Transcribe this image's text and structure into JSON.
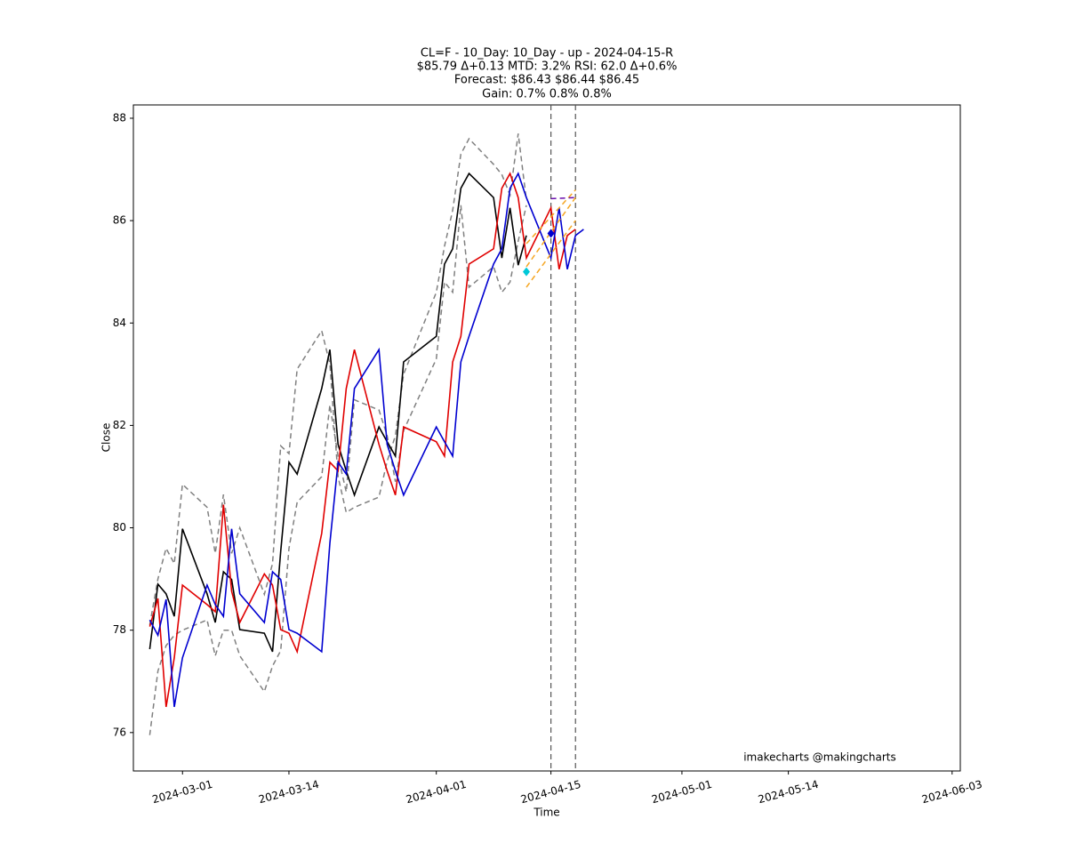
{
  "chart_data": {
    "type": "line",
    "title": [
      "CL=F  - 10_Day: 10_Day - up - 2024-04-15-R",
      "$85.79 Δ+0.13 MTD: 3.2% RSI: 62.0 Δ+0.6%",
      "Forecast: $86.43  $86.44  $86.45",
      "Gain:   0.7%    0.8%    0.8%"
    ],
    "xlabel": "Time",
    "ylabel": "Close",
    "annotation": "imakecharts @makingcharts",
    "xlim": [
      "2024-02-24",
      "2024-06-04"
    ],
    "xticks": [
      "2024-03-01",
      "2024-03-14",
      "2024-04-01",
      "2024-04-15",
      "2024-05-01",
      "2024-05-14",
      "2024-06-03"
    ],
    "ylim": [
      75.25,
      88.26
    ],
    "yticks": [
      76,
      78,
      80,
      82,
      84,
      86,
      88
    ],
    "vlines": [
      "2024-04-15",
      "2024-04-18"
    ],
    "series": [
      {
        "color": "#808080",
        "style": "dashed",
        "x": [
          "2024-02-26",
          "2024-02-27",
          "2024-02-28",
          "2024-02-29",
          "2024-03-01",
          "2024-03-04",
          "2024-03-05",
          "2024-03-06",
          "2024-03-07",
          "2024-03-08",
          "2024-03-11",
          "2024-03-12",
          "2024-03-13",
          "2024-03-14",
          "2024-03-15",
          "2024-03-18",
          "2024-03-19",
          "2024-03-20",
          "2024-03-21",
          "2024-03-22",
          "2024-03-25",
          "2024-03-26",
          "2024-03-27",
          "2024-03-28",
          "2024-04-01",
          "2024-04-02",
          "2024-04-03",
          "2024-04-04",
          "2024-04-05",
          "2024-04-08",
          "2024-04-09",
          "2024-04-10",
          "2024-04-11",
          "2024-04-12"
        ],
        "values": [
          78.1,
          79.0,
          79.6,
          79.3,
          80.85,
          80.4,
          79.5,
          80.65,
          79.5,
          80.0,
          78.7,
          79.3,
          81.6,
          81.45,
          83.1,
          83.85,
          83.2,
          81.0,
          80.3,
          80.4,
          80.6,
          81.3,
          81.8,
          83.0,
          84.6,
          85.5,
          86.2,
          87.3,
          87.6,
          87.1,
          86.9,
          86.5,
          87.7,
          86.4
        ]
      },
      {
        "color": "#808080",
        "style": "dashed",
        "x": [
          "2024-02-26",
          "2024-02-27",
          "2024-02-28",
          "2024-02-29",
          "2024-03-01",
          "2024-03-04",
          "2024-03-05",
          "2024-03-06",
          "2024-03-07",
          "2024-03-08",
          "2024-03-11",
          "2024-03-12",
          "2024-03-13",
          "2024-03-14",
          "2024-03-15",
          "2024-03-18",
          "2024-03-19",
          "2024-03-20",
          "2024-03-21",
          "2024-03-22",
          "2024-03-25",
          "2024-03-26",
          "2024-03-27",
          "2024-03-28",
          "2024-04-01",
          "2024-04-02",
          "2024-04-03",
          "2024-04-04",
          "2024-04-05",
          "2024-04-08",
          "2024-04-09",
          "2024-04-10",
          "2024-04-11",
          "2024-04-12"
        ],
        "values": [
          75.95,
          77.2,
          77.7,
          77.9,
          78.0,
          78.2,
          77.5,
          78.0,
          78.0,
          77.5,
          76.8,
          77.3,
          77.6,
          79.6,
          80.5,
          81.0,
          82.4,
          81.4,
          80.7,
          82.5,
          82.3,
          81.8,
          80.9,
          81.9,
          83.3,
          84.8,
          84.6,
          86.3,
          84.7,
          85.1,
          84.6,
          84.8,
          85.6,
          86.3
        ]
      },
      {
        "color": "#000000",
        "style": "solid",
        "x": [
          "2024-02-26",
          "2024-02-27",
          "2024-02-28",
          "2024-02-29",
          "2024-03-01",
          "2024-03-04",
          "2024-03-05",
          "2024-03-06",
          "2024-03-07",
          "2024-03-08",
          "2024-03-11",
          "2024-03-12",
          "2024-03-13",
          "2024-03-14",
          "2024-03-15",
          "2024-03-18",
          "2024-03-19",
          "2024-03-20",
          "2024-03-21",
          "2024-03-22",
          "2024-03-25",
          "2024-03-26",
          "2024-03-27",
          "2024-03-28",
          "2024-04-01",
          "2024-04-02",
          "2024-04-03",
          "2024-04-04",
          "2024-04-05",
          "2024-04-08",
          "2024-04-09",
          "2024-04-10",
          "2024-04-11",
          "2024-04-12"
        ],
        "values": [
          77.63,
          78.9,
          78.71,
          78.27,
          79.98,
          78.71,
          78.15,
          79.14,
          78.99,
          78.01,
          77.94,
          77.58,
          79.54,
          81.28,
          81.05,
          82.72,
          83.48,
          81.63,
          81.11,
          80.64,
          81.97,
          81.68,
          81.4,
          83.24,
          83.74,
          85.15,
          85.45,
          86.63,
          86.92,
          86.45,
          85.27,
          86.25,
          85.13,
          85.71
        ]
      },
      {
        "color": "#e00000",
        "style": "solid",
        "x": [
          "2024-02-26",
          "2024-02-27",
          "2024-02-28",
          "2024-02-29",
          "2024-03-01",
          "2024-03-04",
          "2024-03-05",
          "2024-03-06",
          "2024-03-07",
          "2024-03-08",
          "2024-03-11",
          "2024-03-12",
          "2024-03-13",
          "2024-03-14",
          "2024-03-15",
          "2024-03-18",
          "2024-03-19",
          "2024-03-20",
          "2024-03-21",
          "2024-03-22",
          "2024-03-25",
          "2024-03-26",
          "2024-03-27",
          "2024-03-28",
          "2024-04-01",
          "2024-04-02",
          "2024-04-03",
          "2024-04-04",
          "2024-04-05",
          "2024-04-08",
          "2024-04-09",
          "2024-04-10",
          "2024-04-11",
          "2024-04-12",
          "2024-04-15",
          "2024-04-16",
          "2024-04-17",
          "2024-04-18"
        ],
        "values": [
          78.07,
          78.62,
          76.5,
          77.46,
          78.88,
          78.5,
          78.36,
          80.45,
          78.76,
          78.15,
          79.1,
          78.88,
          78.01,
          77.94,
          77.58,
          79.89,
          81.28,
          81.11,
          82.72,
          83.48,
          81.63,
          81.11,
          80.64,
          81.97,
          81.68,
          81.4,
          83.24,
          83.74,
          85.15,
          85.45,
          86.63,
          86.92,
          86.45,
          85.27,
          86.25,
          85.05,
          85.71,
          85.83
        ]
      },
      {
        "color": "#0000d0",
        "style": "solid",
        "x": [
          "2024-02-26",
          "2024-02-27",
          "2024-02-28",
          "2024-02-29",
          "2024-03-01",
          "2024-03-04",
          "2024-03-05",
          "2024-03-06",
          "2024-03-07",
          "2024-03-08",
          "2024-03-11",
          "2024-03-12",
          "2024-03-13",
          "2024-03-14",
          "2024-03-15",
          "2024-03-18",
          "2024-03-19",
          "2024-03-20",
          "2024-03-21",
          "2024-03-22",
          "2024-03-25",
          "2024-03-26",
          "2024-03-27",
          "2024-03-28",
          "2024-04-01",
          "2024-04-02",
          "2024-04-03",
          "2024-04-04",
          "2024-04-05",
          "2024-04-08",
          "2024-04-09",
          "2024-04-10",
          "2024-04-11",
          "2024-04-12",
          "2024-04-15",
          "2024-04-16",
          "2024-04-17",
          "2024-04-18",
          "2024-04-19"
        ],
        "values": [
          78.2,
          77.9,
          78.6,
          76.5,
          77.46,
          78.88,
          78.5,
          78.27,
          79.98,
          78.71,
          78.15,
          79.14,
          78.99,
          78.01,
          77.94,
          77.58,
          79.7,
          81.28,
          81.05,
          82.72,
          83.48,
          81.63,
          81.11,
          80.64,
          81.97,
          81.68,
          81.4,
          83.24,
          83.74,
          85.15,
          85.45,
          86.63,
          86.92,
          86.45,
          85.27,
          86.25,
          85.05,
          85.71,
          85.83
        ]
      },
      {
        "color": "#f5a623",
        "style": "dashed",
        "x": [
          "2024-04-12",
          "2024-04-18"
        ],
        "values": [
          85.55,
          86.6
        ]
      },
      {
        "color": "#f5a623",
        "style": "dashed",
        "x": [
          "2024-04-12",
          "2024-04-18"
        ],
        "values": [
          85.1,
          86.45
        ]
      },
      {
        "color": "#f5a623",
        "style": "dashed",
        "x": [
          "2024-04-12",
          "2024-04-18"
        ],
        "values": [
          84.7,
          86.0
        ]
      },
      {
        "color": "#6a0dad",
        "style": "dashed",
        "x": [
          "2024-04-15",
          "2024-04-18"
        ],
        "values": [
          86.43,
          86.45
        ]
      },
      {
        "color": "#00c8d8",
        "style": "marker",
        "x": [
          "2024-04-12"
        ],
        "values": [
          85.0
        ]
      },
      {
        "color": "#0000d0",
        "style": "marker",
        "x": [
          "2024-04-15"
        ],
        "values": [
          85.75
        ]
      }
    ]
  }
}
